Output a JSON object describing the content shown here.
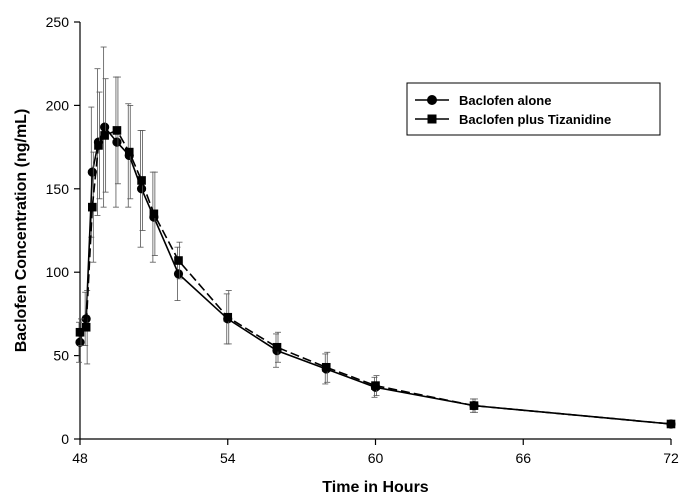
{
  "chart_data": {
    "type": "line",
    "title": "",
    "xlabel": "Time in Hours",
    "ylabel": "Baclofen Concentration (ng/mL)",
    "xlim": [
      48,
      72
    ],
    "ylim": [
      0,
      250
    ],
    "xticks": [
      48,
      54,
      60,
      66,
      72
    ],
    "yticks": [
      0,
      50,
      100,
      150,
      200,
      250
    ],
    "grid": false,
    "legend_position": "top-right",
    "series": [
      {
        "name": "Baclofen alone",
        "marker": "circle",
        "line_style": "solid",
        "color": "#000000",
        "x": [
          48,
          48.25,
          48.5,
          48.75,
          49,
          49.5,
          50,
          50.5,
          51,
          52,
          54,
          56,
          58,
          60,
          64,
          72
        ],
        "y": [
          58,
          72,
          160,
          178,
          187,
          178,
          170,
          150,
          133,
          99,
          72,
          53,
          42,
          31,
          20,
          9
        ],
        "error": [
          12,
          16,
          39,
          44,
          48,
          39,
          31,
          35,
          27,
          16,
          15,
          10,
          9,
          6,
          4,
          2
        ]
      },
      {
        "name": "Baclofen plus Tizanidine",
        "marker": "square",
        "line_style": "dashed",
        "color": "#000000",
        "x": [
          48,
          48.25,
          48.5,
          48.75,
          49,
          49.5,
          50,
          50.5,
          51,
          52,
          54,
          56,
          58,
          60,
          64,
          72
        ],
        "y": [
          64,
          67,
          139,
          176,
          182,
          185,
          172,
          155,
          135,
          107,
          73,
          55,
          43,
          32,
          20,
          9
        ],
        "error": [
          8,
          22,
          33,
          32,
          34,
          32,
          28,
          30,
          25,
          11,
          16,
          9,
          9,
          6,
          4,
          2
        ]
      }
    ]
  }
}
